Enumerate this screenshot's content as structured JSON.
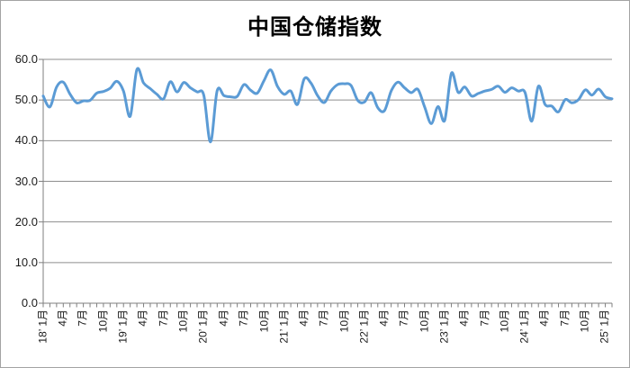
{
  "chart_title": "中国仓储指数",
  "colors": {
    "line": "#5b9bd5",
    "grid": "#8e8e8e",
    "axis": "#7f7f7f",
    "text": "#1a1a1a",
    "frame_border": "#a3a3a3",
    "background": "#ffffff"
  },
  "chart_data": {
    "type": "line",
    "title": "中国仓储指数",
    "xlabel": "",
    "ylabel": "",
    "x_start": "2018-01",
    "x_end": "2025-02",
    "x_tick_every_months": 3,
    "x_tick_labels": [
      "18’ 1月",
      "4月",
      "7月",
      "10月",
      "19’ 1月",
      "4月",
      "7月",
      "10月",
      "20’ 1月",
      "4月",
      "7月",
      "10月",
      "21’ 1月",
      "4月",
      "7月",
      "10月",
      "22’ 1月",
      "4月",
      "7月",
      "10月",
      "23’ 1月",
      "4月",
      "7月",
      "10月",
      "24’ 1月",
      "4月",
      "7月",
      "10月",
      "25’ 1月"
    ],
    "y_ticks": [
      "60.0",
      "50.0",
      "40.0",
      "30.0",
      "20.0",
      "10.0",
      "0.0"
    ],
    "ylim": [
      0,
      60
    ],
    "grid": true,
    "legend_position": "none",
    "line_smoothing": true,
    "series": [
      {
        "name": "中国仓储指数",
        "values": [
          51.0,
          48.3,
          53.2,
          54.4,
          51.5,
          49.3,
          49.8,
          49.9,
          51.7,
          52.1,
          52.9,
          54.6,
          52.2,
          46.0,
          57.5,
          54.2,
          52.8,
          51.4,
          50.3,
          54.5,
          52.0,
          54.3,
          53.0,
          52.0,
          51.2,
          39.7,
          52.3,
          51.1,
          50.8,
          50.9,
          53.8,
          52.4,
          51.7,
          54.8,
          57.4,
          53.4,
          51.4,
          52.2,
          48.9,
          55.2,
          54.2,
          51.1,
          49.4,
          52.2,
          53.8,
          54.0,
          53.6,
          49.9,
          49.5,
          51.8,
          48.1,
          47.4,
          52.2,
          54.4,
          53.0,
          51.8,
          52.6,
          48.3,
          44.2,
          48.4,
          45.0,
          56.6,
          51.9,
          53.2,
          51.0,
          51.6,
          52.2,
          52.6,
          53.4,
          51.9,
          53.0,
          52.2,
          51.9,
          44.8,
          53.4,
          48.9,
          48.5,
          47.1,
          50.1,
          49.3,
          50.1,
          52.5,
          51.2,
          52.7,
          50.8,
          50.3
        ]
      }
    ]
  }
}
